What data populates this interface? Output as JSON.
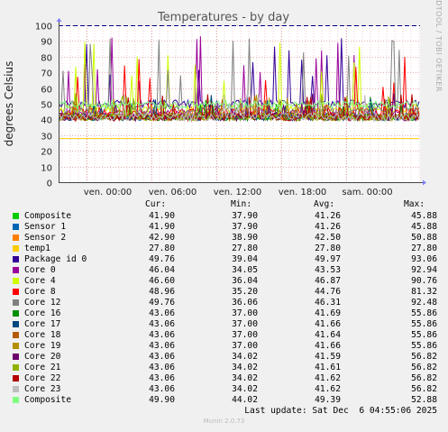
{
  "chart_data": {
    "type": "line",
    "title": "Temperatures - by day",
    "ylabel": "degrees Celsius",
    "side_label": "RRDTOOL / TOBI OETIKER",
    "ylim": [
      0,
      100
    ],
    "yticks": [
      0,
      10,
      20,
      30,
      40,
      50,
      60,
      70,
      80,
      90,
      100
    ],
    "xticks": [
      "ven. 00:00",
      "ven. 06:00",
      "ven. 12:00",
      "ven. 18:00",
      "sam. 00:00"
    ],
    "grid": true,
    "legend_headers": {
      "cur": "Cur:",
      "min": "Min:",
      "avg": "Avg:",
      "max": "Max:"
    },
    "series": [
      {
        "name": "Composite",
        "color": "#00cc00",
        "cur": "41.90",
        "min": "37.90",
        "avg": "41.26",
        "max": "45.88"
      },
      {
        "name": "Sensor 1",
        "color": "#0066b3",
        "cur": "41.90",
        "min": "37.90",
        "avg": "41.26",
        "max": "45.88"
      },
      {
        "name": "Sensor 2",
        "color": "#ff8000",
        "cur": "42.90",
        "min": "38.90",
        "avg": "42.50",
        "max": "50.88"
      },
      {
        "name": "temp1",
        "color": "#ffcc00",
        "cur": "27.80",
        "min": "27.80",
        "avg": "27.80",
        "max": "27.80"
      },
      {
        "name": "Package id 0",
        "color": "#330099",
        "cur": "49.76",
        "min": "39.04",
        "avg": "49.97",
        "max": "93.06"
      },
      {
        "name": "Core 0",
        "color": "#990099",
        "cur": "46.04",
        "min": "34.05",
        "avg": "43.53",
        "max": "92.94"
      },
      {
        "name": "Core 4",
        "color": "#ccff00",
        "cur": "46.60",
        "min": "36.04",
        "avg": "46.87",
        "max": "90.76"
      },
      {
        "name": "Core 8",
        "color": "#ff0000",
        "cur": "48.96",
        "min": "35.20",
        "avg": "44.76",
        "max": "81.32"
      },
      {
        "name": "Core 12",
        "color": "#808080",
        "cur": "49.76",
        "min": "36.06",
        "avg": "46.31",
        "max": "92.48"
      },
      {
        "name": "Core 16",
        "color": "#008f00",
        "cur": "43.06",
        "min": "37.00",
        "avg": "41.69",
        "max": "55.86"
      },
      {
        "name": "Core 17",
        "color": "#00487d",
        "cur": "43.06",
        "min": "37.00",
        "avg": "41.66",
        "max": "55.86"
      },
      {
        "name": "Core 18",
        "color": "#b35a00",
        "cur": "43.06",
        "min": "37.00",
        "avg": "41.64",
        "max": "55.86"
      },
      {
        "name": "Core 19",
        "color": "#b38f00",
        "cur": "43.06",
        "min": "37.00",
        "avg": "41.66",
        "max": "55.86"
      },
      {
        "name": "Core 20",
        "color": "#6b006b",
        "cur": "43.06",
        "min": "34.02",
        "avg": "41.59",
        "max": "56.82"
      },
      {
        "name": "Core 21",
        "color": "#8fb300",
        "cur": "43.06",
        "min": "34.02",
        "avg": "41.61",
        "max": "56.82"
      },
      {
        "name": "Core 22",
        "color": "#b30000",
        "cur": "43.06",
        "min": "34.02",
        "avg": "41.62",
        "max": "56.82"
      },
      {
        "name": "Core 23",
        "color": "#bebebe",
        "cur": "43.06",
        "min": "34.02",
        "avg": "41.62",
        "max": "56.82"
      },
      {
        "name": "Composite",
        "color": "#80ff80",
        "cur": "49.90",
        "min": "44.02",
        "avg": "49.39",
        "max": "52.88"
      }
    ],
    "warning_line": {
      "value": 100,
      "color": "#000080"
    }
  },
  "footer": {
    "last_update": "Last update: Sat Dec  6 04:55:06 2025",
    "generator": "Munin 2.0.73"
  }
}
